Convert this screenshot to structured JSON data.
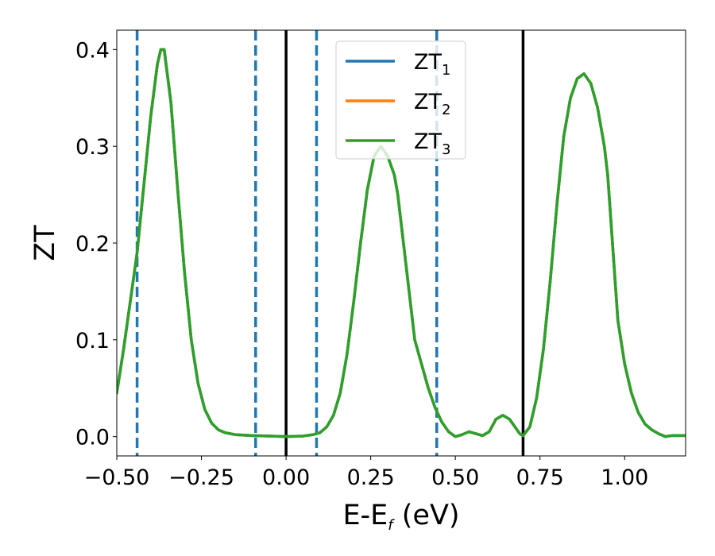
{
  "chart_data": {
    "type": "line",
    "xlabel": {
      "main": "E-E",
      "sub": "f",
      "tail": " (eV)"
    },
    "ylabel": "ZT",
    "xlim": [
      -0.5,
      1.18
    ],
    "ylim": [
      -0.02,
      0.42
    ],
    "xticks": [
      -0.5,
      -0.25,
      0.0,
      0.25,
      0.5,
      0.75,
      1.0
    ],
    "xtick_labels": [
      "−0.50",
      "−0.25",
      "0.00",
      "0.25",
      "0.50",
      "0.75",
      "1.00"
    ],
    "yticks": [
      0.0,
      0.1,
      0.2,
      0.3,
      0.4
    ],
    "ytick_labels": [
      "0.0",
      "0.1",
      "0.2",
      "0.3",
      "0.4"
    ],
    "grid": false,
    "legend_position": "top-center",
    "vlines_solid": {
      "color": "#000000",
      "x": [
        0.0,
        0.7
      ]
    },
    "vlines_dashed": {
      "color": "#1f77b4",
      "x": [
        -0.44,
        -0.09,
        0.09,
        0.445
      ]
    },
    "series": [
      {
        "name": "ZT",
        "subscript": "1",
        "color": "#1f77b4",
        "x": [
          -0.5,
          -0.48,
          -0.46,
          -0.44,
          -0.42,
          -0.4,
          -0.38,
          -0.37,
          -0.36,
          -0.34,
          -0.32,
          -0.3,
          -0.28,
          -0.26,
          -0.24,
          -0.22,
          -0.2,
          -0.18,
          -0.15,
          -0.1,
          -0.05,
          0.0,
          0.05,
          0.08,
          0.1,
          0.12,
          0.14,
          0.16,
          0.18,
          0.2,
          0.22,
          0.24,
          0.26,
          0.28,
          0.3,
          0.32,
          0.33,
          0.34,
          0.35,
          0.36,
          0.37,
          0.38,
          0.4,
          0.42,
          0.44,
          0.46,
          0.48,
          0.5,
          0.52,
          0.54,
          0.56,
          0.58,
          0.6,
          0.62,
          0.64,
          0.66,
          0.68,
          0.69,
          0.7,
          0.72,
          0.74,
          0.76,
          0.78,
          0.8,
          0.82,
          0.84,
          0.86,
          0.88,
          0.9,
          0.92,
          0.94,
          0.95,
          0.96,
          0.97,
          0.98,
          1.0,
          1.02,
          1.04,
          1.06,
          1.08,
          1.1,
          1.12,
          1.14,
          1.16,
          1.18
        ],
        "values": [
          0.045,
          0.09,
          0.14,
          0.19,
          0.26,
          0.33,
          0.385,
          0.4,
          0.4,
          0.345,
          0.255,
          0.17,
          0.1,
          0.055,
          0.028,
          0.014,
          0.007,
          0.004,
          0.002,
          0.001,
          0.0005,
          0.0,
          0.0005,
          0.002,
          0.004,
          0.01,
          0.022,
          0.045,
          0.085,
          0.14,
          0.2,
          0.255,
          0.29,
          0.3,
          0.29,
          0.27,
          0.25,
          0.22,
          0.19,
          0.16,
          0.13,
          0.1,
          0.075,
          0.05,
          0.03,
          0.015,
          0.005,
          0.0,
          0.002,
          0.005,
          0.003,
          0.001,
          0.005,
          0.018,
          0.022,
          0.018,
          0.008,
          0.003,
          0.001,
          0.01,
          0.04,
          0.09,
          0.16,
          0.24,
          0.31,
          0.35,
          0.37,
          0.375,
          0.365,
          0.34,
          0.3,
          0.27,
          0.22,
          0.17,
          0.12,
          0.075,
          0.045,
          0.025,
          0.013,
          0.007,
          0.003,
          0.0,
          0.001,
          0.001,
          0.001
        ]
      },
      {
        "name": "ZT",
        "subscript": "2",
        "color": "#ff7f0e",
        "x": [
          -0.5,
          -0.48,
          -0.46,
          -0.44,
          -0.42,
          -0.4,
          -0.38,
          -0.37,
          -0.36,
          -0.34,
          -0.32,
          -0.3,
          -0.28,
          -0.26,
          -0.24,
          -0.22,
          -0.2,
          -0.18,
          -0.15,
          -0.1,
          -0.05,
          0.0,
          0.05,
          0.08,
          0.1,
          0.12,
          0.14,
          0.16,
          0.18,
          0.2,
          0.22,
          0.24,
          0.26,
          0.28,
          0.3,
          0.32,
          0.33,
          0.34,
          0.35,
          0.36,
          0.37,
          0.38,
          0.4,
          0.42,
          0.44,
          0.46,
          0.48,
          0.5,
          0.52,
          0.54,
          0.56,
          0.58,
          0.6,
          0.62,
          0.64,
          0.66,
          0.68,
          0.69,
          0.7,
          0.72,
          0.74,
          0.76,
          0.78,
          0.8,
          0.82,
          0.84,
          0.86,
          0.88,
          0.9,
          0.92,
          0.94,
          0.95,
          0.96,
          0.97,
          0.98,
          1.0,
          1.02,
          1.04,
          1.06,
          1.08,
          1.1,
          1.12,
          1.14,
          1.16,
          1.18
        ],
        "values": [
          0.045,
          0.09,
          0.14,
          0.19,
          0.26,
          0.33,
          0.385,
          0.4,
          0.4,
          0.345,
          0.255,
          0.17,
          0.1,
          0.055,
          0.028,
          0.014,
          0.007,
          0.004,
          0.002,
          0.001,
          0.0005,
          0.0,
          0.0005,
          0.002,
          0.004,
          0.01,
          0.022,
          0.045,
          0.085,
          0.14,
          0.2,
          0.255,
          0.29,
          0.3,
          0.29,
          0.27,
          0.25,
          0.22,
          0.19,
          0.16,
          0.13,
          0.1,
          0.075,
          0.05,
          0.03,
          0.015,
          0.005,
          0.0,
          0.002,
          0.005,
          0.003,
          0.001,
          0.005,
          0.018,
          0.022,
          0.018,
          0.008,
          0.003,
          0.001,
          0.01,
          0.04,
          0.09,
          0.16,
          0.24,
          0.31,
          0.35,
          0.37,
          0.375,
          0.365,
          0.34,
          0.3,
          0.27,
          0.22,
          0.17,
          0.12,
          0.075,
          0.045,
          0.025,
          0.013,
          0.007,
          0.003,
          0.0,
          0.001,
          0.001,
          0.001
        ]
      },
      {
        "name": "ZT",
        "subscript": "3",
        "color": "#2ca02c",
        "x": [
          -0.5,
          -0.48,
          -0.46,
          -0.44,
          -0.42,
          -0.4,
          -0.38,
          -0.37,
          -0.36,
          -0.34,
          -0.32,
          -0.3,
          -0.28,
          -0.26,
          -0.24,
          -0.22,
          -0.2,
          -0.18,
          -0.15,
          -0.1,
          -0.05,
          0.0,
          0.05,
          0.08,
          0.1,
          0.12,
          0.14,
          0.16,
          0.18,
          0.2,
          0.22,
          0.24,
          0.26,
          0.28,
          0.3,
          0.32,
          0.33,
          0.34,
          0.35,
          0.36,
          0.37,
          0.38,
          0.4,
          0.42,
          0.44,
          0.46,
          0.48,
          0.5,
          0.52,
          0.54,
          0.56,
          0.58,
          0.6,
          0.62,
          0.64,
          0.66,
          0.68,
          0.69,
          0.7,
          0.72,
          0.74,
          0.76,
          0.78,
          0.8,
          0.82,
          0.84,
          0.86,
          0.88,
          0.9,
          0.92,
          0.94,
          0.95,
          0.96,
          0.97,
          0.98,
          1.0,
          1.02,
          1.04,
          1.06,
          1.08,
          1.1,
          1.12,
          1.14,
          1.16,
          1.18
        ],
        "values": [
          0.045,
          0.09,
          0.14,
          0.19,
          0.26,
          0.33,
          0.385,
          0.4,
          0.4,
          0.345,
          0.255,
          0.17,
          0.1,
          0.055,
          0.028,
          0.014,
          0.007,
          0.004,
          0.002,
          0.001,
          0.0005,
          0.0,
          0.0005,
          0.002,
          0.004,
          0.01,
          0.022,
          0.045,
          0.085,
          0.14,
          0.2,
          0.255,
          0.29,
          0.3,
          0.29,
          0.27,
          0.25,
          0.22,
          0.19,
          0.16,
          0.13,
          0.1,
          0.075,
          0.05,
          0.03,
          0.015,
          0.005,
          0.0,
          0.002,
          0.005,
          0.003,
          0.001,
          0.005,
          0.018,
          0.022,
          0.018,
          0.008,
          0.003,
          0.001,
          0.01,
          0.04,
          0.09,
          0.16,
          0.24,
          0.31,
          0.35,
          0.37,
          0.375,
          0.365,
          0.34,
          0.3,
          0.27,
          0.22,
          0.17,
          0.12,
          0.075,
          0.045,
          0.025,
          0.013,
          0.007,
          0.003,
          0.0,
          0.001,
          0.001,
          0.001
        ]
      }
    ]
  }
}
